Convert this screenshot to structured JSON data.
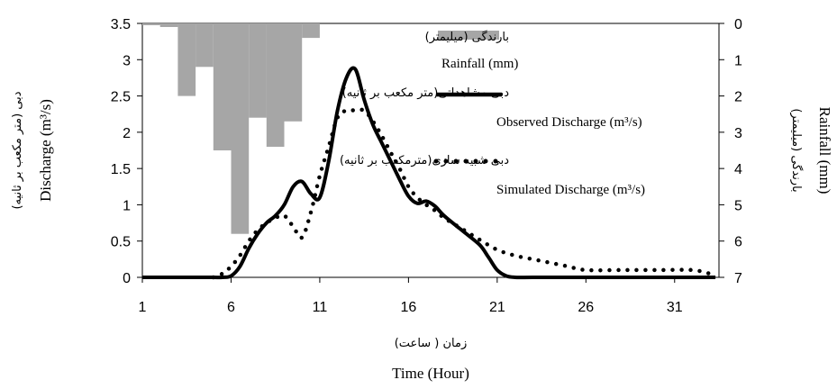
{
  "chart_data": {
    "type": "line",
    "xlabel_fa": "زمان ( ساعت)",
    "xlabel": "Time (Hour)",
    "ylabel_fa": "دبی (متر مکعب بر ثانیه)",
    "ylabel": "Discharge (m³/s)",
    "y2label_fa": "بارندگی (میلیمتر)",
    "y2label": "Rainfall (mm)",
    "xlim": [
      1,
      33.5
    ],
    "xticks": [
      "1",
      "6",
      "11",
      "16",
      "21",
      "26",
      "31"
    ],
    "ylim": [
      0,
      3.5
    ],
    "yticks": [
      "0",
      "0.5",
      "1",
      "1.5",
      "2",
      "2.5",
      "3",
      "3.5"
    ],
    "y2lim": [
      0,
      7
    ],
    "y2ticks": [
      "0",
      "1",
      "2",
      "3",
      "4",
      "5",
      "6",
      "7"
    ],
    "rainfall": {
      "name_fa": "بارندگی (میلیمتر)",
      "name": "Rainfall (mm)",
      "color": "#a6a6a6",
      "x": [
        1.5,
        2.5,
        3.5,
        4.5,
        5.5,
        6.5,
        7.5,
        8.5,
        9.5,
        10.5
      ],
      "values": [
        0.05,
        0.1,
        2.0,
        1.2,
        3.5,
        5.8,
        2.6,
        3.4,
        2.7,
        0.4
      ]
    },
    "series": [
      {
        "name_fa": "دبی مشاهداتی(متر مکعب بر ثانیه)",
        "name": "Observed Discharge (m³/s)",
        "style": "solid",
        "color": "#000000",
        "x": [
          1,
          2,
          3,
          4,
          5,
          5.5,
          6,
          6.5,
          7,
          7.5,
          8,
          8.5,
          9,
          9.5,
          10,
          10.5,
          11,
          11.5,
          12,
          12.5,
          13,
          13.5,
          14,
          14.5,
          15,
          15.5,
          16,
          16.5,
          17,
          17.5,
          18,
          19,
          20,
          20.5,
          21,
          21.5,
          22,
          23,
          25,
          28,
          31,
          33.3
        ],
        "values": [
          0,
          0,
          0,
          0,
          0,
          0,
          0.02,
          0.15,
          0.4,
          0.6,
          0.75,
          0.85,
          1.0,
          1.25,
          1.32,
          1.15,
          1.1,
          1.6,
          2.3,
          2.75,
          2.87,
          2.45,
          2.1,
          1.85,
          1.6,
          1.35,
          1.12,
          1.02,
          1.05,
          0.98,
          0.85,
          0.65,
          0.45,
          0.28,
          0.1,
          0.02,
          0,
          0,
          0,
          0,
          0,
          0
        ]
      },
      {
        "name_fa": "دبی شبیه سازی(مترمکعب بر ثانیه)",
        "name": "Simulated Discharge (m³/s)",
        "style": "dotted",
        "color": "#000000",
        "x": [
          5,
          5.5,
          6,
          6.5,
          7,
          7.5,
          8,
          8.5,
          9,
          9.5,
          10,
          10.5,
          11,
          11.5,
          12,
          12.5,
          13,
          13.5,
          14,
          14.5,
          15,
          15.5,
          16,
          16.5,
          17,
          17.5,
          18,
          19,
          20,
          21,
          22,
          23,
          24,
          25,
          26,
          28,
          30,
          32,
          33
        ],
        "values": [
          0,
          0.05,
          0.15,
          0.3,
          0.5,
          0.65,
          0.75,
          0.82,
          0.85,
          0.7,
          0.55,
          0.9,
          1.4,
          1.8,
          2.2,
          2.3,
          2.3,
          2.3,
          2.15,
          1.95,
          1.72,
          1.5,
          1.25,
          1.1,
          1.0,
          0.92,
          0.82,
          0.67,
          0.52,
          0.38,
          0.3,
          0.25,
          0.2,
          0.15,
          0.1,
          0.1,
          0.1,
          0.1,
          0.05
        ]
      }
    ]
  }
}
